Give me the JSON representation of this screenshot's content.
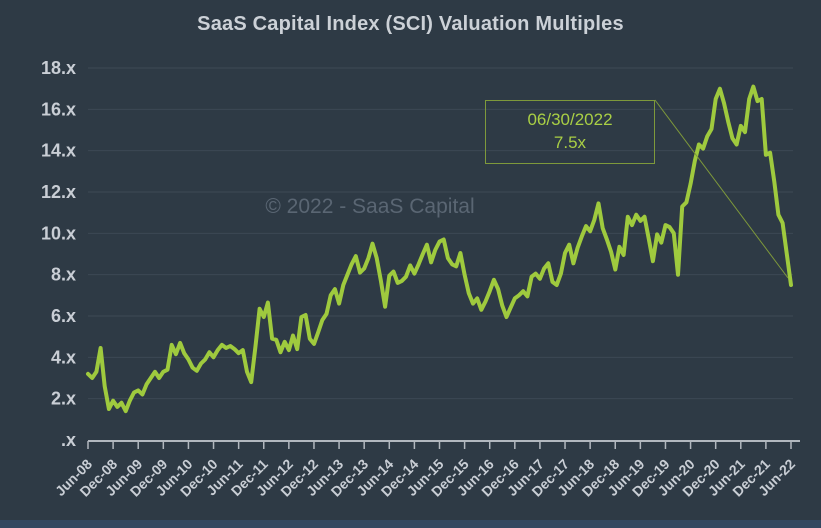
{
  "title": "SaaS Capital Index (SCI) Valuation Multiples",
  "watermark": "© 2022 - SaaS Capital",
  "annotation": {
    "date": "06/30/2022",
    "value": "7.5x"
  },
  "colors": {
    "background": "#2e3a45",
    "line": "#9fca3e",
    "gridline": "#3d4955",
    "axis": "#b2b8bf",
    "axis_label": "#c9ced5",
    "title_text": "#ccd1d7",
    "watermark_text": "#5a6673",
    "annotation_text": "#a9cf45",
    "annotation_border": "#7e993b",
    "bottom_strip": "#334860"
  },
  "chart_data": {
    "type": "line",
    "title": "SaaS Capital Index (SCI) Valuation Multiples",
    "xlabel": "",
    "ylabel": "",
    "ylim": [
      0,
      18
    ],
    "y_tick_step": 2,
    "y_tick_labels": [
      "18.x",
      "16.x",
      "14.x",
      "12.x",
      "10.x",
      "8.x",
      "6.x",
      "4.x",
      "2.x",
      ".x"
    ],
    "x_tick_labels": [
      "Jun-08",
      "Dec-08",
      "Jun-09",
      "Dec-09",
      "Jun-10",
      "Dec-10",
      "Jun-11",
      "Dec-11",
      "Jun-12",
      "Dec-12",
      "Jun-13",
      "Dec-13",
      "Jun-14",
      "Dec-14",
      "Jun-15",
      "Dec-15",
      "Jun-16",
      "Dec-16",
      "Jun-17",
      "Dec-17",
      "Jun-18",
      "Dec-18",
      "Jun-19",
      "Dec-19",
      "Jun-20",
      "Dec-20",
      "Jun-21",
      "Dec-21",
      "Jun-22"
    ],
    "x_frequency": "monthly",
    "x_range": "Jun-08 to Jun-22",
    "grid": true,
    "legend": false,
    "series_name": "SCI valuation multiple",
    "values": [
      3.2,
      3.0,
      3.3,
      4.45,
      2.6,
      1.5,
      1.9,
      1.6,
      1.8,
      1.4,
      1.9,
      2.3,
      2.4,
      2.2,
      2.7,
      3.0,
      3.3,
      3.0,
      3.3,
      3.4,
      4.6,
      4.15,
      4.7,
      4.2,
      3.9,
      3.5,
      3.35,
      3.7,
      3.9,
      4.25,
      4.0,
      4.35,
      4.6,
      4.45,
      4.55,
      4.4,
      4.2,
      4.35,
      3.3,
      2.8,
      4.5,
      6.35,
      5.95,
      6.65,
      4.9,
      4.85,
      4.25,
      4.75,
      4.35,
      5.05,
      4.4,
      5.95,
      6.05,
      4.9,
      4.65,
      5.2,
      5.8,
      6.1,
      7.0,
      7.3,
      6.6,
      7.5,
      8.0,
      8.5,
      8.9,
      8.1,
      8.3,
      8.8,
      9.5,
      8.8,
      7.7,
      6.45,
      7.95,
      8.15,
      7.6,
      7.7,
      7.9,
      8.45,
      8.05,
      8.5,
      9.0,
      9.45,
      8.6,
      9.2,
      9.6,
      9.7,
      8.8,
      8.5,
      8.4,
      9.05,
      8.0,
      7.1,
      6.6,
      6.85,
      6.3,
      6.7,
      7.2,
      7.75,
      7.3,
      6.5,
      5.95,
      6.4,
      6.85,
      7.0,
      7.2,
      6.95,
      7.9,
      8.05,
      7.8,
      8.3,
      8.55,
      7.65,
      7.5,
      8.05,
      9.05,
      9.45,
      8.55,
      9.3,
      9.85,
      10.35,
      10.1,
      10.65,
      11.45,
      10.25,
      9.7,
      9.1,
      8.25,
      9.35,
      8.95,
      10.8,
      10.4,
      10.9,
      10.6,
      10.8,
      9.75,
      8.65,
      9.95,
      9.55,
      10.4,
      10.3,
      10.0,
      8.0,
      11.3,
      11.5,
      12.4,
      13.5,
      14.3,
      14.1,
      14.7,
      15.05,
      16.5,
      17.0,
      16.3,
      15.4,
      14.6,
      14.3,
      15.2,
      14.9,
      16.5,
      17.1,
      16.4,
      16.5,
      13.8,
      13.9,
      12.5,
      10.9,
      10.5,
      9.0,
      7.5
    ]
  }
}
